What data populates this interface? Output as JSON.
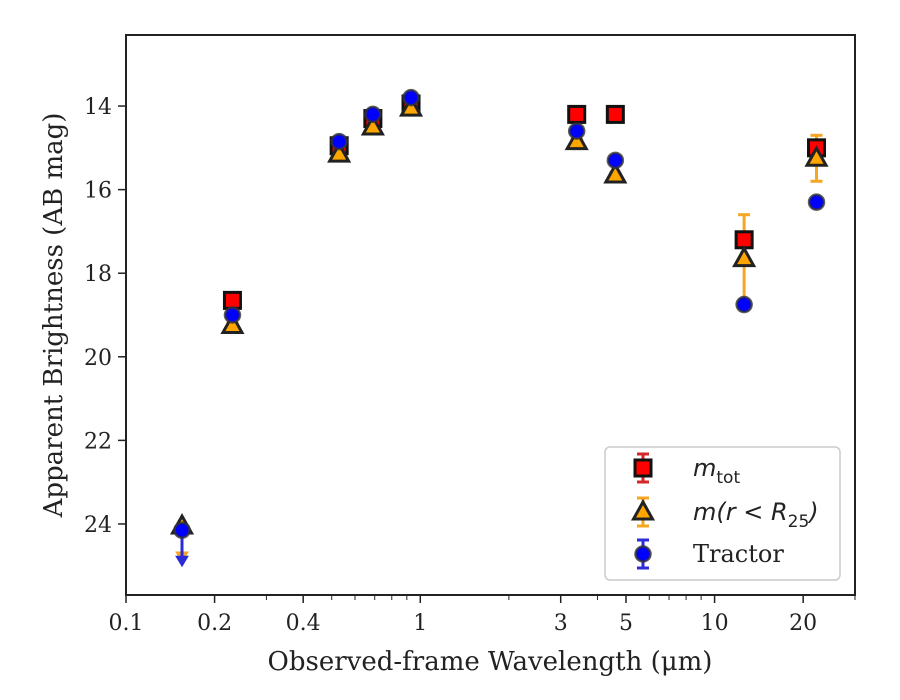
{
  "chart_data": {
    "type": "scatter",
    "xlabel": "Observed-frame Wavelength (μm)",
    "ylabel": "Apparent Brightness (AB mag)",
    "xscale": "log",
    "xlim": [
      0.1,
      30
    ],
    "ylim": [
      25.7,
      12.3
    ],
    "y_inverted": true,
    "x_ticks": [
      {
        "value": 0.1,
        "label": "0.1"
      },
      {
        "value": 0.2,
        "label": "0.2"
      },
      {
        "value": 0.4,
        "label": "0.4"
      },
      {
        "value": 1,
        "label": "1"
      },
      {
        "value": 3,
        "label": "3"
      },
      {
        "value": 5,
        "label": "5"
      },
      {
        "value": 10,
        "label": "10"
      },
      {
        "value": 20,
        "label": "20"
      }
    ],
    "x_minor_ticks": [
      0.3,
      0.5,
      0.6,
      0.7,
      0.8,
      0.9,
      2,
      4,
      6,
      7,
      8,
      9,
      30
    ],
    "y_ticks": [
      {
        "value": 14,
        "label": "14"
      },
      {
        "value": 16,
        "label": "16"
      },
      {
        "value": 18,
        "label": "18"
      },
      {
        "value": 20,
        "label": "20"
      },
      {
        "value": 22,
        "label": "22"
      },
      {
        "value": 24,
        "label": "24"
      }
    ],
    "legend_position": "lower-right",
    "legend": [
      {
        "key": "mtot",
        "base": "m",
        "sub": "tot",
        "tail": ""
      },
      {
        "key": "mr25",
        "base": "m(r < R",
        "sub": "25",
        "tail": ")"
      },
      {
        "key": "tractor",
        "base": "Tractor",
        "sub": "",
        "tail": ""
      }
    ],
    "series": [
      {
        "key": "mtot",
        "marker": "square",
        "color": "#ff0000",
        "edge": "#111111",
        "errcolor": "#d62728",
        "points": [
          {
            "x": 0.23,
            "y": 18.65,
            "err": 0.08
          },
          {
            "x": 0.53,
            "y": 14.95,
            "err": 0.05
          },
          {
            "x": 0.69,
            "y": 14.3,
            "err": 0.05
          },
          {
            "x": 0.93,
            "y": 13.95,
            "err": 0.05
          },
          {
            "x": 3.4,
            "y": 14.2,
            "err": 0.05
          },
          {
            "x": 4.6,
            "y": 14.2,
            "err": 0.05
          },
          {
            "x": 12.6,
            "y": 17.2,
            "err": 0.1
          },
          {
            "x": 22.2,
            "y": 15.0,
            "err": 0.08
          }
        ]
      },
      {
        "key": "mr25",
        "marker": "triangle",
        "color": "#ffa500",
        "edge": "#222222",
        "errcolor": "#f5a623",
        "points": [
          {
            "x": 0.155,
            "y": 24.05,
            "err": 0.05,
            "upper_limit": true
          },
          {
            "x": 0.23,
            "y": 19.25,
            "err": 0.05
          },
          {
            "x": 0.53,
            "y": 15.15,
            "err": 0.05
          },
          {
            "x": 0.69,
            "y": 14.5,
            "err": 0.05
          },
          {
            "x": 0.93,
            "y": 14.05,
            "err": 0.05
          },
          {
            "x": 3.4,
            "y": 14.85,
            "err": 0.05
          },
          {
            "x": 4.6,
            "y": 15.65,
            "err": 0.05
          },
          {
            "x": 12.6,
            "y": 17.65,
            "err": 1.05
          },
          {
            "x": 22.2,
            "y": 15.25,
            "err": 0.55
          }
        ]
      },
      {
        "key": "tractor",
        "marker": "circle",
        "color": "#0000ff",
        "edge": "#333333",
        "errcolor": "#2b2bd9",
        "points": [
          {
            "x": 0.155,
            "y": 24.15,
            "err": 0.05,
            "upper_limit": true
          },
          {
            "x": 0.23,
            "y": 19.0,
            "err": 0.05
          },
          {
            "x": 0.53,
            "y": 14.85,
            "err": 0.05
          },
          {
            "x": 0.69,
            "y": 14.2,
            "err": 0.05
          },
          {
            "x": 0.93,
            "y": 13.8,
            "err": 0.05
          },
          {
            "x": 3.4,
            "y": 14.6,
            "err": 0.05
          },
          {
            "x": 4.6,
            "y": 15.3,
            "err": 0.05
          },
          {
            "x": 12.6,
            "y": 18.75,
            "err": 0.05
          },
          {
            "x": 22.2,
            "y": 16.3,
            "err": 0.05
          }
        ]
      }
    ]
  }
}
